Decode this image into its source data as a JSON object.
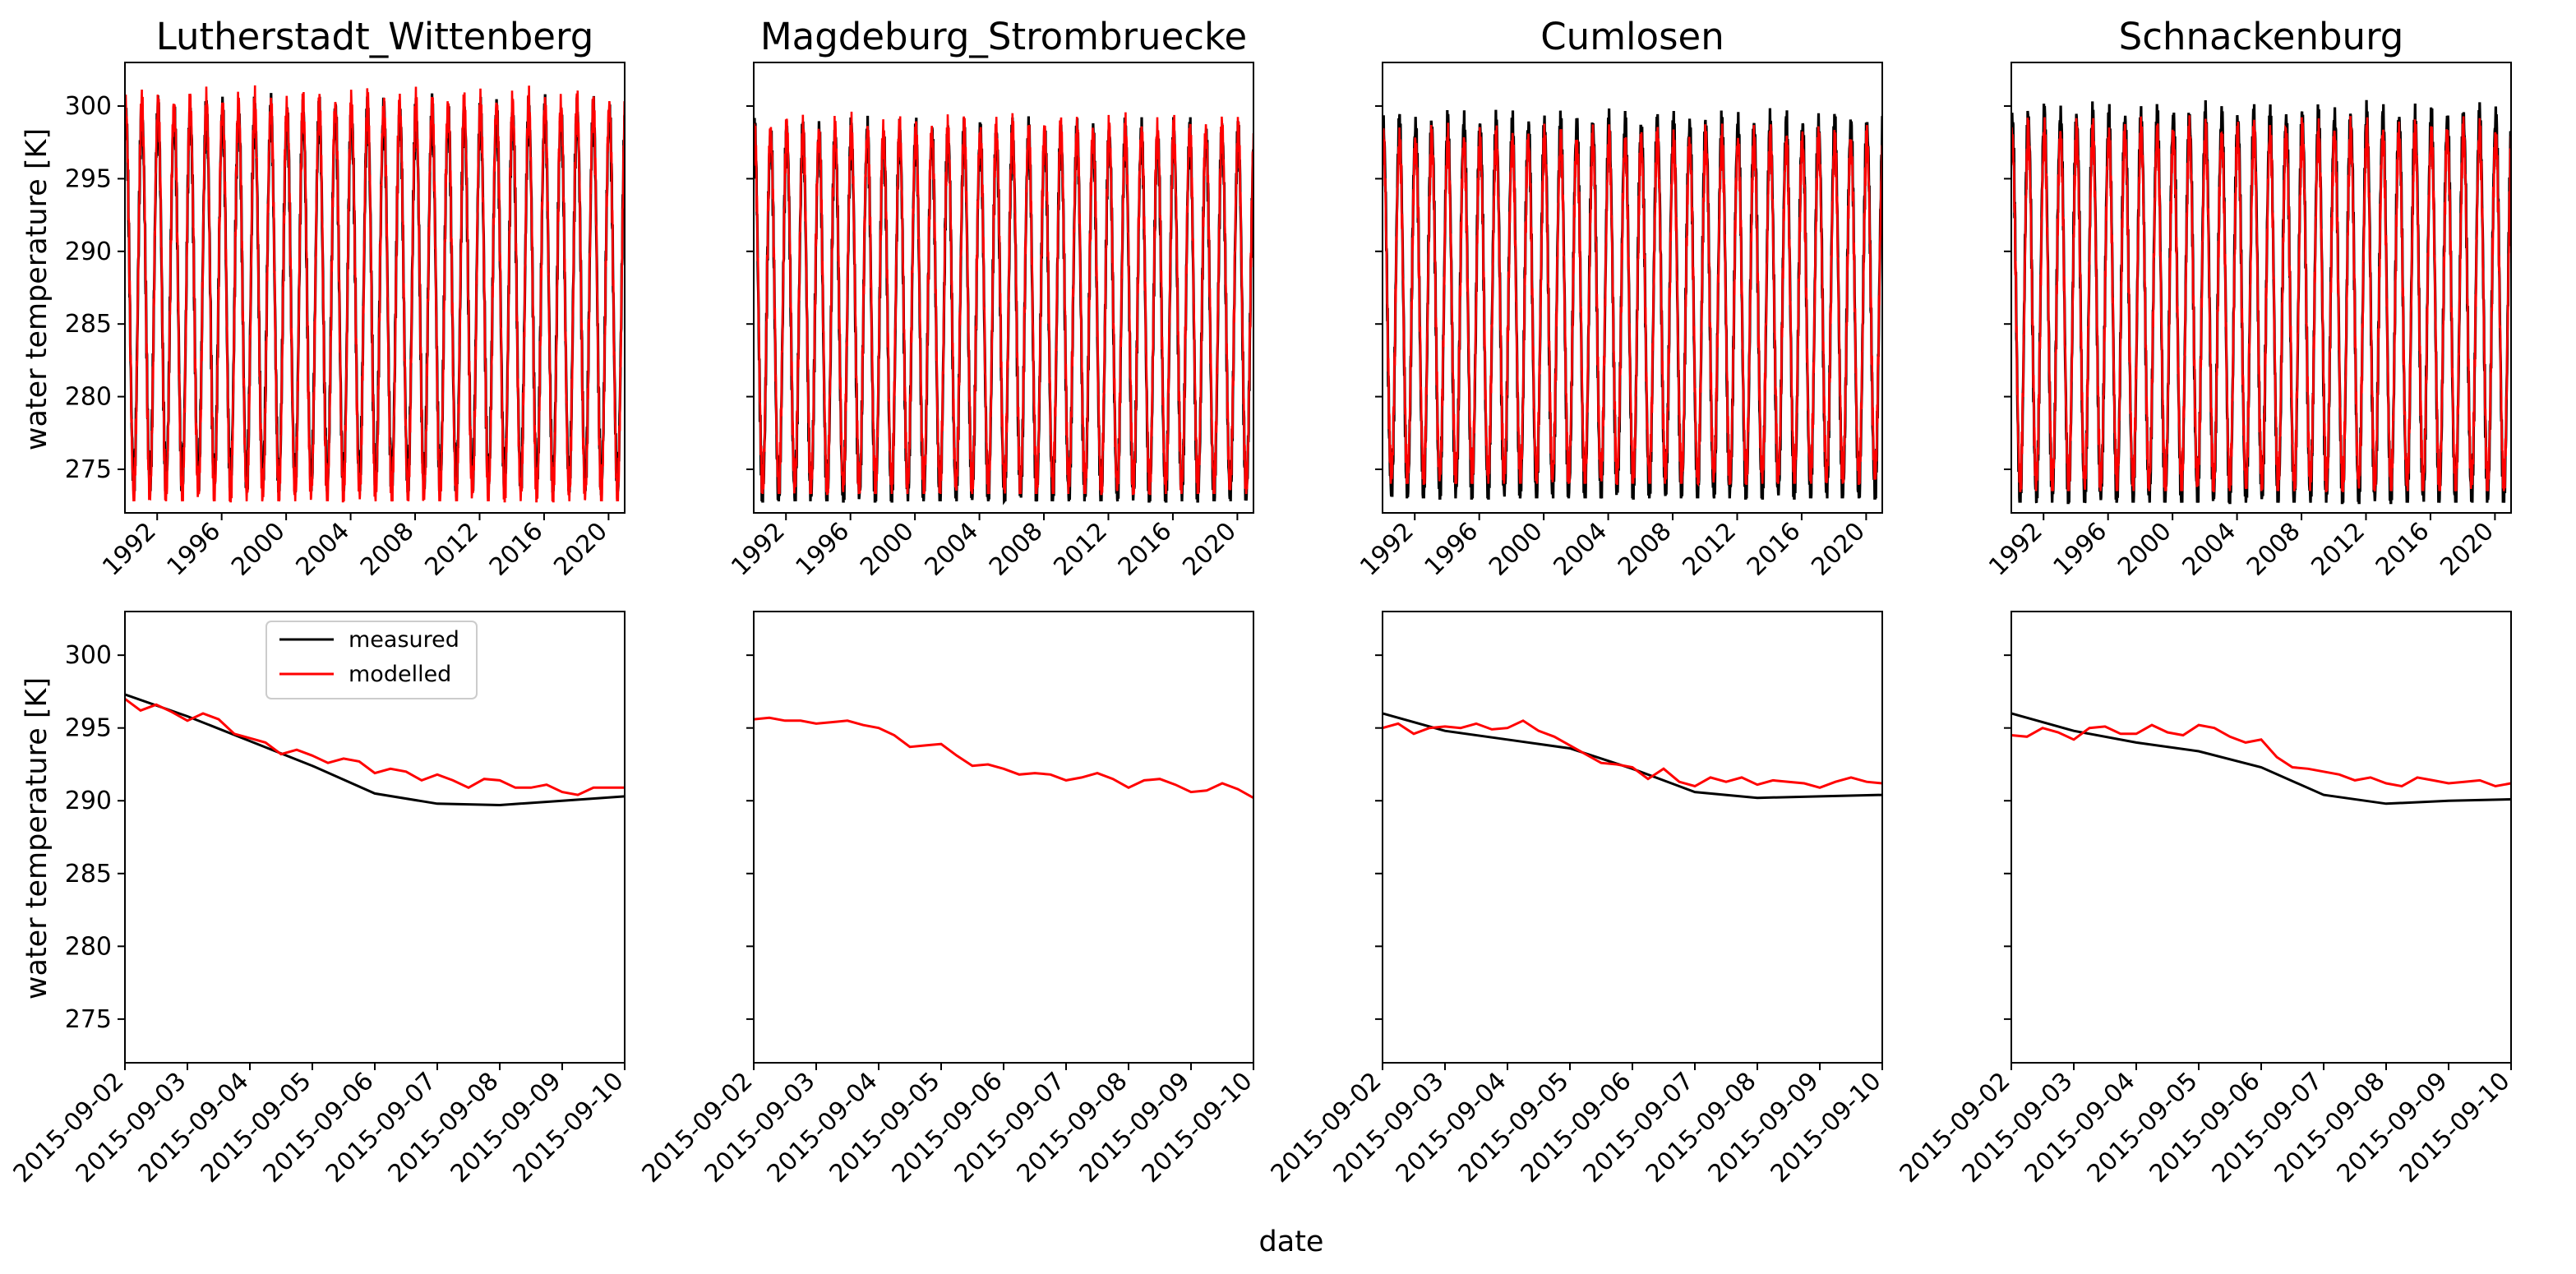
{
  "figure": {
    "xlabel": "date",
    "ylabel": "water temperature [K]"
  },
  "legend": {
    "items": [
      {
        "label": "measured",
        "color": "#000000"
      },
      {
        "label": "modelled",
        "color": "#ff0000"
      }
    ]
  },
  "colors": {
    "measured": "#000000",
    "modelled": "#ff0000"
  },
  "chart_data": [
    {
      "type": "line",
      "title": "Lutherstadt_Wittenberg",
      "xlabel": "",
      "ylabel": "water temperature [K]",
      "xlim": [
        1990.0,
        2021.0
      ],
      "ylim": [
        272,
        303
      ],
      "yticks": [
        "275",
        "280",
        "285",
        "290",
        "295",
        "300"
      ],
      "xticks": [
        "1992",
        "1996",
        "2000",
        "2004",
        "2008",
        "2012",
        "2016",
        "2020"
      ],
      "seasonal": {
        "measured": {
          "max": 299.5,
          "min": 274.0
        },
        "modelled": {
          "max": 300.0,
          "min": 273.3
        }
      }
    },
    {
      "type": "line",
      "title": "Magdeburg_Strombruecke",
      "xlabel": "",
      "ylabel": "",
      "xlim": [
        1990.0,
        2021.0
      ],
      "ylim": [
        272,
        303
      ],
      "yticks": [
        "275",
        "280",
        "285",
        "290",
        "295",
        "300"
      ],
      "xticks": [
        "1992",
        "1996",
        "2000",
        "2004",
        "2008",
        "2012",
        "2016",
        "2020"
      ],
      "seasonal": {
        "measured": {
          "max": 298.0,
          "min": 273.3
        },
        "modelled": {
          "max": 298.2,
          "min": 273.8
        }
      }
    },
    {
      "type": "line",
      "title": "Cumlosen",
      "xlabel": "",
      "ylabel": "",
      "xlim": [
        1990.0,
        2021.0
      ],
      "ylim": [
        272,
        303
      ],
      "yticks": [
        "275",
        "280",
        "285",
        "290",
        "295",
        "300"
      ],
      "xticks": [
        "1992",
        "1996",
        "2000",
        "2004",
        "2008",
        "2012",
        "2016",
        "2020"
      ],
      "seasonal": {
        "measured": {
          "max": 298.5,
          "min": 273.5
        },
        "modelled": {
          "max": 297.5,
          "min": 274.5
        }
      }
    },
    {
      "type": "line",
      "title": "Schnackenburg",
      "xlabel": "",
      "ylabel": "",
      "xlim": [
        1990.0,
        2021.0
      ],
      "ylim": [
        272,
        303
      ],
      "yticks": [
        "275",
        "280",
        "285",
        "290",
        "295",
        "300"
      ],
      "xticks": [
        "1992",
        "1996",
        "2000",
        "2004",
        "2008",
        "2012",
        "2016",
        "2020"
      ],
      "seasonal": {
        "measured": {
          "max": 299.0,
          "min": 273.2
        },
        "modelled": {
          "max": 298.0,
          "min": 274.0
        }
      }
    },
    {
      "type": "line",
      "title": "",
      "xlabel": "",
      "ylabel": "water temperature [K]",
      "xlim": [
        0,
        8.0
      ],
      "ylim": [
        272,
        303
      ],
      "yticks": [
        "275",
        "280",
        "285",
        "290",
        "295",
        "300"
      ],
      "xticks": [
        "2015-09-02",
        "2015-09-03",
        "2015-09-04",
        "2015-09-05",
        "2015-09-06",
        "2015-09-07",
        "2015-09-08",
        "2015-09-09",
        "2015-09-10"
      ],
      "series": [
        {
          "name": "measured",
          "x": [
            0,
            1,
            2,
            3,
            4,
            5,
            6,
            7,
            8
          ],
          "y": [
            297.3,
            295.8,
            294.1,
            292.4,
            290.5,
            289.8,
            289.7,
            290.0,
            290.3
          ]
        },
        {
          "name": "modelled",
          "x": [
            0,
            0.25,
            0.5,
            0.75,
            1.0,
            1.25,
            1.5,
            1.75,
            2.0,
            2.25,
            2.5,
            2.75,
            3.0,
            3.25,
            3.5,
            3.75,
            4.0,
            4.25,
            4.5,
            4.75,
            5.0,
            5.25,
            5.5,
            5.75,
            6.0,
            6.25,
            6.5,
            6.75,
            7.0,
            7.25,
            7.5,
            7.75,
            8.0
          ],
          "y": [
            297.0,
            296.2,
            296.6,
            296.1,
            295.5,
            296.0,
            295.6,
            294.6,
            294.3,
            294.0,
            293.2,
            293.5,
            293.1,
            292.6,
            292.9,
            292.7,
            291.9,
            292.2,
            292.0,
            291.4,
            291.8,
            291.4,
            290.9,
            291.5,
            291.4,
            290.9,
            290.9,
            291.1,
            290.6,
            290.4,
            290.9,
            290.9,
            290.9
          ]
        }
      ]
    },
    {
      "type": "line",
      "title": "",
      "xlabel": "",
      "ylabel": "",
      "xlim": [
        0,
        8.0
      ],
      "ylim": [
        272,
        303
      ],
      "yticks": [
        "275",
        "280",
        "285",
        "290",
        "295",
        "300"
      ],
      "xticks": [
        "2015-09-02",
        "2015-09-03",
        "2015-09-04",
        "2015-09-05",
        "2015-09-06",
        "2015-09-07",
        "2015-09-08",
        "2015-09-09",
        "2015-09-10"
      ],
      "series": [
        {
          "name": "modelled",
          "x": [
            0,
            0.25,
            0.5,
            0.75,
            1.0,
            1.25,
            1.5,
            1.75,
            2.0,
            2.25,
            2.5,
            2.75,
            3.0,
            3.25,
            3.5,
            3.75,
            4.0,
            4.25,
            4.5,
            4.75,
            5.0,
            5.25,
            5.5,
            5.75,
            6.0,
            6.25,
            6.5,
            6.75,
            7.0,
            7.25,
            7.5,
            7.75,
            8.0
          ],
          "y": [
            295.6,
            295.7,
            295.5,
            295.5,
            295.3,
            295.4,
            295.5,
            295.2,
            295.0,
            294.5,
            293.7,
            293.8,
            293.9,
            293.1,
            292.4,
            292.5,
            292.2,
            291.8,
            291.9,
            291.8,
            291.4,
            291.6,
            291.9,
            291.5,
            290.9,
            291.4,
            291.5,
            291.1,
            290.6,
            290.7,
            291.2,
            290.8,
            290.2
          ]
        }
      ]
    },
    {
      "type": "line",
      "title": "",
      "xlabel": "",
      "ylabel": "",
      "xlim": [
        0,
        8.0
      ],
      "ylim": [
        272,
        303
      ],
      "yticks": [
        "275",
        "280",
        "285",
        "290",
        "295",
        "300"
      ],
      "xticks": [
        "2015-09-02",
        "2015-09-03",
        "2015-09-04",
        "2015-09-05",
        "2015-09-06",
        "2015-09-07",
        "2015-09-08",
        "2015-09-09",
        "2015-09-10"
      ],
      "series": [
        {
          "name": "measured",
          "x": [
            0,
            1,
            2,
            3,
            4,
            5,
            6,
            7,
            8
          ],
          "y": [
            296.0,
            294.8,
            294.2,
            293.6,
            292.2,
            290.6,
            290.2,
            290.3,
            290.4
          ]
        },
        {
          "name": "modelled",
          "x": [
            0,
            0.25,
            0.5,
            0.75,
            1.0,
            1.25,
            1.5,
            1.75,
            2.0,
            2.25,
            2.5,
            2.75,
            3.0,
            3.25,
            3.5,
            3.75,
            4.0,
            4.25,
            4.5,
            4.75,
            5.0,
            5.25,
            5.5,
            5.75,
            6.0,
            6.25,
            6.5,
            6.75,
            7.0,
            7.25,
            7.5,
            7.75,
            8.0
          ],
          "y": [
            295.0,
            295.3,
            294.6,
            295.0,
            295.1,
            295.0,
            295.3,
            294.9,
            295.0,
            295.5,
            294.8,
            294.4,
            293.8,
            293.2,
            292.6,
            292.5,
            292.3,
            291.5,
            292.2,
            291.3,
            291.0,
            291.6,
            291.3,
            291.6,
            291.1,
            291.4,
            291.3,
            291.2,
            290.9,
            291.3,
            291.6,
            291.3,
            291.2
          ]
        }
      ]
    },
    {
      "type": "line",
      "title": "",
      "xlabel": "",
      "ylabel": "",
      "xlim": [
        0,
        8.0
      ],
      "ylim": [
        272,
        303
      ],
      "yticks": [
        "275",
        "280",
        "285",
        "290",
        "295",
        "300"
      ],
      "xticks": [
        "2015-09-02",
        "2015-09-03",
        "2015-09-04",
        "2015-09-05",
        "2015-09-06",
        "2015-09-07",
        "2015-09-08",
        "2015-09-09",
        "2015-09-10"
      ],
      "series": [
        {
          "name": "measured",
          "x": [
            0,
            1,
            2,
            3,
            4,
            5,
            6,
            7,
            8
          ],
          "y": [
            296.0,
            294.8,
            294.0,
            293.4,
            292.3,
            290.4,
            289.8,
            290.0,
            290.1
          ]
        },
        {
          "name": "modelled",
          "x": [
            0,
            0.25,
            0.5,
            0.75,
            1.0,
            1.25,
            1.5,
            1.75,
            2.0,
            2.25,
            2.5,
            2.75,
            3.0,
            3.25,
            3.5,
            3.75,
            4.0,
            4.25,
            4.5,
            4.75,
            5.0,
            5.25,
            5.5,
            5.75,
            6.0,
            6.25,
            6.5,
            6.75,
            7.0,
            7.25,
            7.5,
            7.75,
            8.0
          ],
          "y": [
            294.5,
            294.4,
            295.0,
            294.7,
            294.2,
            295.0,
            295.1,
            294.6,
            294.6,
            295.2,
            294.7,
            294.5,
            295.2,
            295.0,
            294.4,
            294.0,
            294.2,
            293.0,
            292.3,
            292.2,
            292.0,
            291.8,
            291.4,
            291.6,
            291.2,
            291.0,
            291.6,
            291.4,
            291.2,
            291.3,
            291.4,
            291.0,
            291.2
          ]
        }
      ]
    }
  ]
}
